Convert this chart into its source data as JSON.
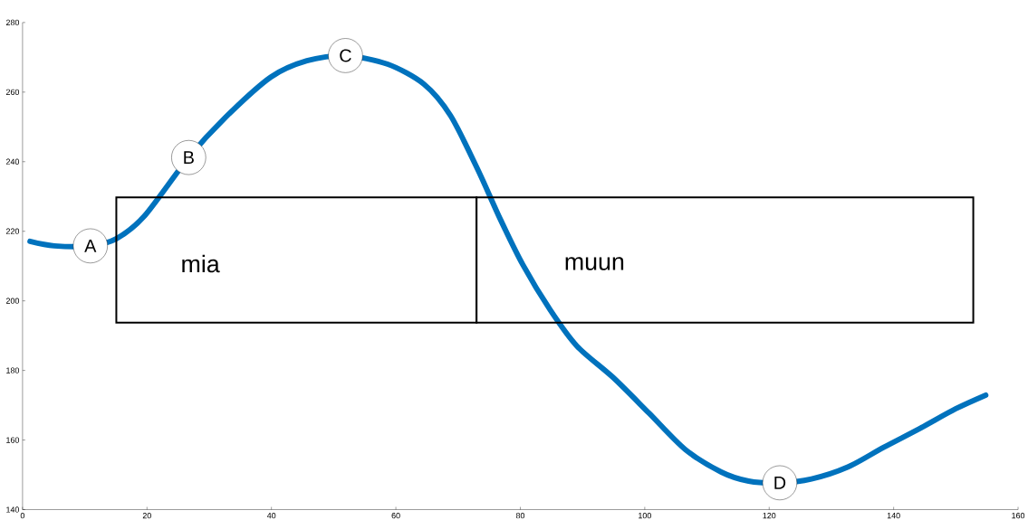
{
  "chart_data": {
    "type": "line",
    "x": [
      1.2,
      5.1,
      10.9,
      15.1,
      19.6,
      26.7,
      32.6,
      39.9,
      45.7,
      51.9,
      58.7,
      64.5,
      68.8,
      73.2,
      76.8,
      80.4,
      84.8,
      89.1,
      94.9,
      100.7,
      106.5,
      112.3,
      116.7,
      121.7,
      126.8,
      132.6,
      138.4,
      144.2,
      150,
      154.8
    ],
    "series": [
      {
        "color": "#0072bd",
        "values": [
          217.1,
          215.8,
          215.8,
          217.9,
          224.4,
          241.2,
          252.7,
          264.3,
          269,
          270.5,
          268,
          262.3,
          253.2,
          237.6,
          223.4,
          210.4,
          197.4,
          187,
          178,
          167.7,
          157.3,
          150.8,
          148.2,
          147.7,
          148.8,
          152.2,
          157.9,
          163.3,
          169,
          172.9
        ]
      }
    ],
    "xlim": [
      0,
      160
    ],
    "ylim": [
      140,
      280
    ],
    "xticks": [
      0,
      20,
      40,
      60,
      80,
      100,
      120,
      140,
      160
    ],
    "yticks": [
      140,
      160,
      180,
      200,
      220,
      240,
      260,
      280
    ],
    "grid": false,
    "marker": "none",
    "line_style": "solid",
    "annotations": [
      "mia",
      "muun",
      {
        "text": "A",
        "x": 10.9,
        "y": 215.8
      },
      {
        "text": "B",
        "x": 26.7,
        "y": 241.2
      },
      {
        "text": "C",
        "x": 51.9,
        "y": 270.5
      },
      {
        "text": "D",
        "x": 121.7,
        "y": 147.7
      }
    ]
  }
}
